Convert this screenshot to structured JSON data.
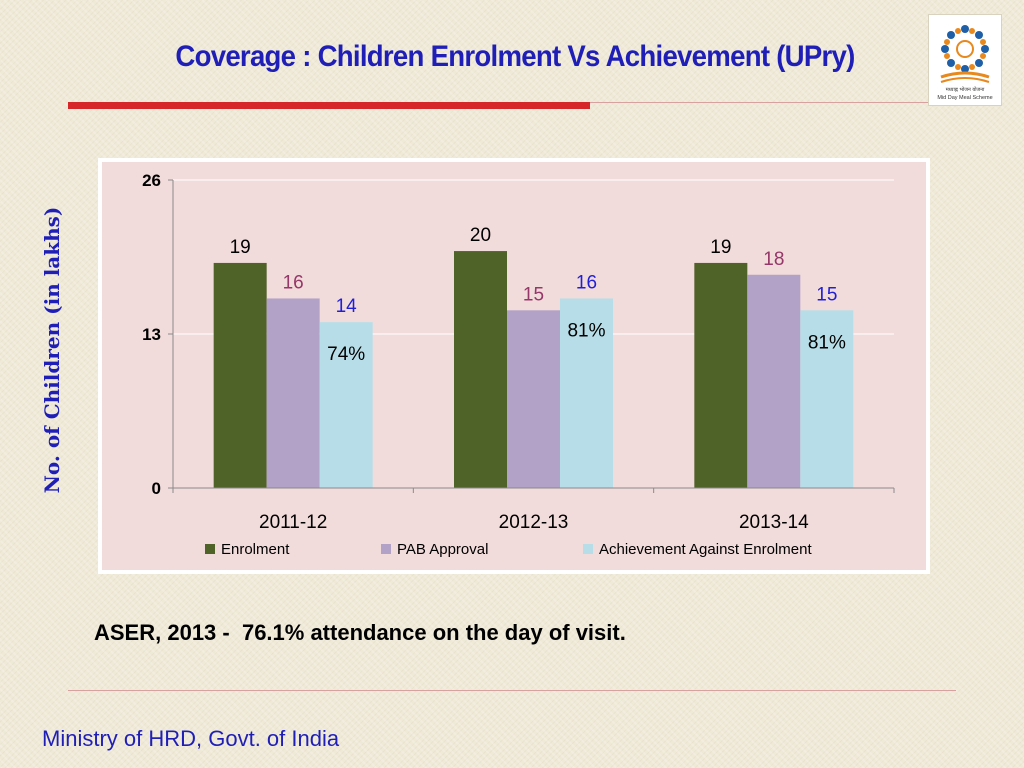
{
  "slide": {
    "title": "Coverage : Children Enrolment Vs Achievement (UPry)",
    "note": "ASER, 2013 -  76.1% attendance on the day of visit.",
    "footer": "Ministry of HRD, Govt. of India",
    "logo": {
      "icon": "mid-day-meal-logo-icon",
      "caption_hindi": "मध्याह्न भोजन योजना",
      "caption": "Mid Day Meal Scheme"
    }
  },
  "chart_data": {
    "type": "bar",
    "title": "",
    "ylabel": "No. of Children (in lakhs)",
    "xlabel": "",
    "ylim": [
      0,
      26
    ],
    "yticks": [
      0,
      13,
      26
    ],
    "grid": true,
    "legend_position": "bottom",
    "categories": [
      "2011-12",
      "2012-13",
      "2013-14"
    ],
    "series": [
      {
        "name": "Enrolment",
        "color": "#4f6228",
        "label_color": "#000000",
        "values": [
          19,
          20,
          19
        ]
      },
      {
        "name": "PAB Approval",
        "color": "#b3a2c7",
        "label_color": "#953768",
        "values": [
          16,
          15,
          18
        ]
      },
      {
        "name": "Achievement Against Enrolment",
        "color": "#b7dee8",
        "label_color": "#1f1fd8",
        "values": [
          14,
          16,
          15
        ]
      }
    ],
    "annotations": [
      "74%",
      "81%",
      "81%"
    ],
    "plot_background": "#f2dcdb"
  }
}
